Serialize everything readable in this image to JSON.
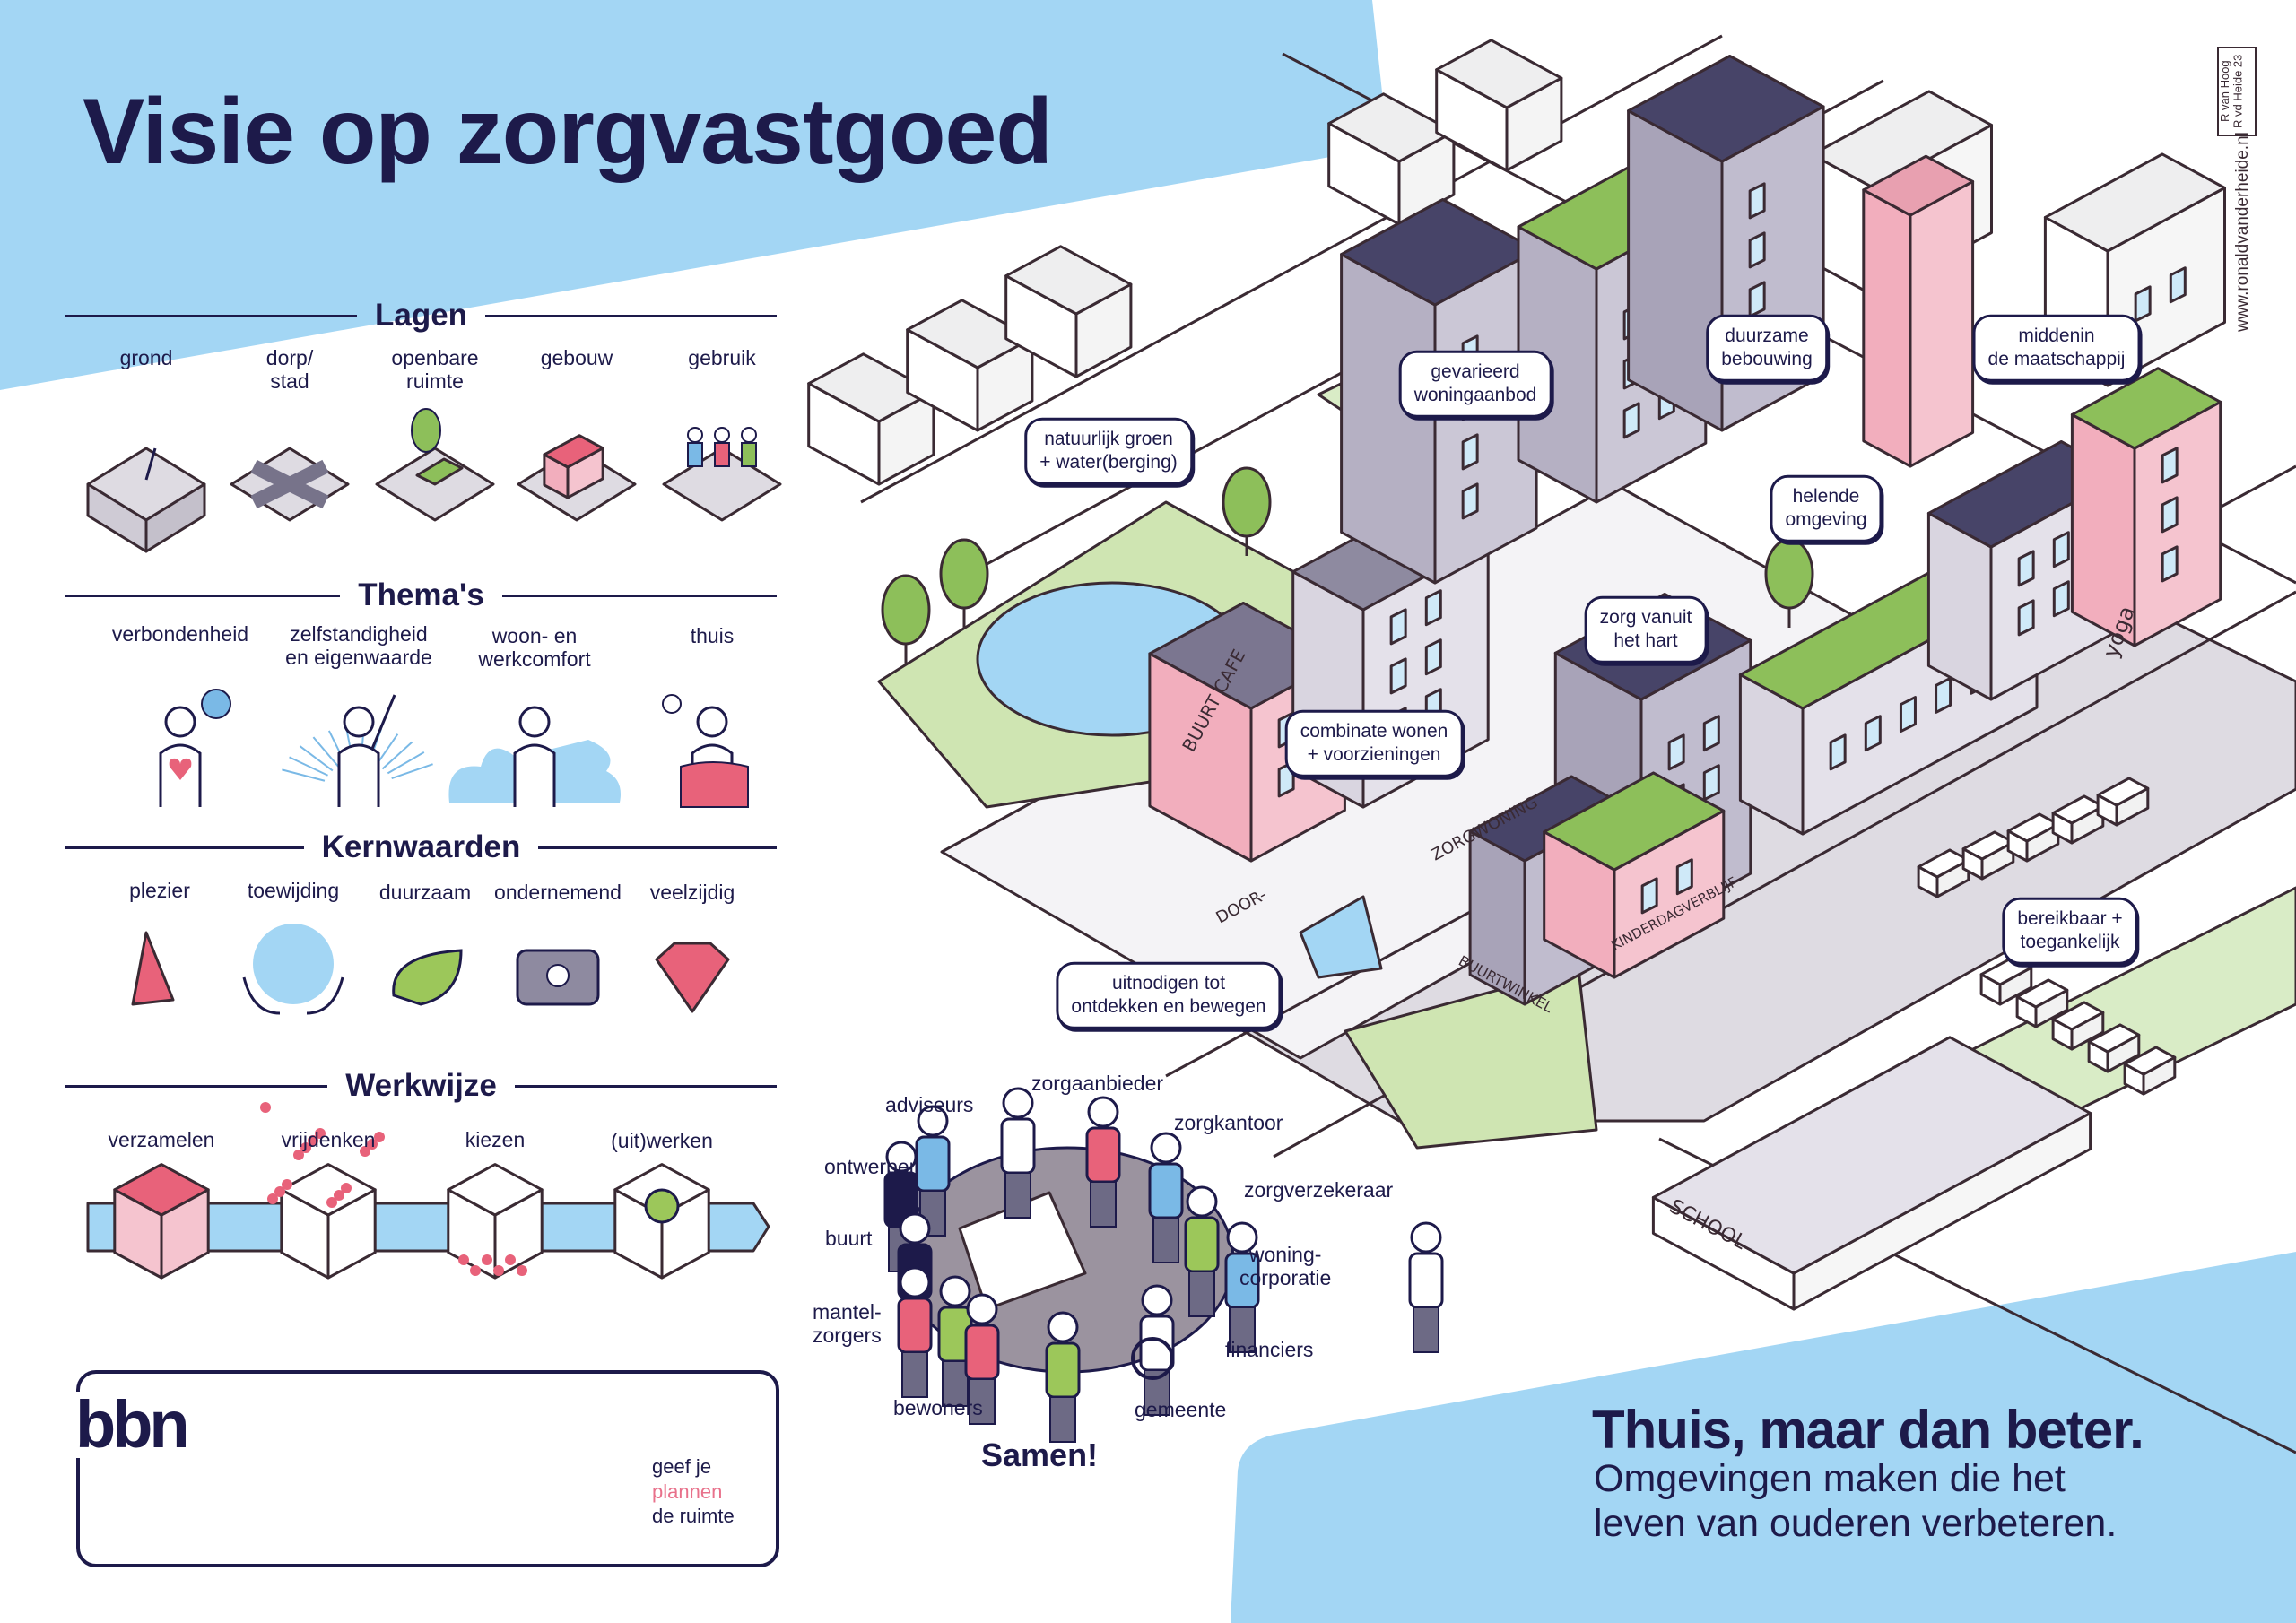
{
  "title": "Visie op zorgvastgoed",
  "lagen": {
    "heading": "Lagen",
    "items": [
      {
        "label": "grond",
        "icon": "soil-block-icon"
      },
      {
        "label": "dorp/\nstad",
        "icon": "crossroads-icon"
      },
      {
        "label": "openbare\nruimte",
        "icon": "park-bench-tree-icon"
      },
      {
        "label": "gebouw",
        "icon": "building-icon"
      },
      {
        "label": "gebruik",
        "icon": "people-high-five-icon"
      }
    ]
  },
  "themas": {
    "heading": "Thema's",
    "items": [
      {
        "label": "verbondenheid",
        "icon": "person-heart-globe-icon"
      },
      {
        "label": "zelfstandigheid\nen eigenwaarde",
        "icon": "proud-person-icon"
      },
      {
        "label": "woon- en\nwerkcomfort",
        "icon": "carer-cloud-icon"
      },
      {
        "label": "thuis",
        "icon": "person-armchair-reading-icon"
      }
    ]
  },
  "kernwaarden": {
    "heading": "Kernwaarden",
    "items": [
      {
        "label": "plezier",
        "icon": "party-hat-icon"
      },
      {
        "label": "toewijding",
        "icon": "hands-holding-sphere-icon"
      },
      {
        "label": "duurzaam",
        "icon": "leaf-icon"
      },
      {
        "label": "ondernemend",
        "icon": "briefcase-lightbulb-icon"
      },
      {
        "label": "veelzijdig",
        "icon": "diamond-icon"
      }
    ]
  },
  "werkwijze": {
    "heading": "Werkwijze",
    "steps": [
      {
        "label": "verzamelen",
        "icon": "full-box-icon"
      },
      {
        "label": "vrijdenken",
        "icon": "box-scattering-balls-icon"
      },
      {
        "label": "kiezen",
        "icon": "box-few-balls-icon"
      },
      {
        "label": "(uit)werken",
        "icon": "box-lightbulb-icon"
      }
    ]
  },
  "logo": {
    "text": "bbn",
    "tagline_1": "geef je",
    "tagline_2": "plannen",
    "tagline_3": "de ruimte"
  },
  "samen": {
    "title": "Samen!",
    "stakeholders": [
      "adviseurs",
      "zorgaanbieder",
      "zorgkantoor",
      "ontwerper",
      "zorgverzekeraar",
      "buurt",
      "woning-\ncorporatie",
      "mantel-\nzorgers",
      "financiers",
      "bewoners",
      "gemeente"
    ]
  },
  "callouts": [
    "natuurlijk groen\n+ water(berging)",
    "gevarieerd\nwoningaanbod",
    "duurzame\nbebouwing",
    "middenin\nde maatschappij",
    "helende\nomgeving",
    "zorg vanuit\nhet hart",
    "combinate wonen\n+ voorzieningen",
    "uitnodigen tot\nontdekken en bewegen",
    "bereikbaar +\ntoegankelijk"
  ],
  "signs": [
    "BUURT CAFE",
    "ZORGWONING",
    "DOOR-",
    "BUURTWINKEL",
    "KINDERDAGVERBLIJF",
    "yoga",
    "SCHOOL"
  ],
  "tagline": {
    "headline": "Thuis, maar dan beter.",
    "line_1": "Omgevingen maken die het",
    "line_2": "leven van ouderen verbeteren."
  },
  "credits": {
    "signature": "R van Hoog\nR vd Heide 23",
    "website": "www.ronaldvanderheide.nl"
  },
  "colors": {
    "navy": "#1d1a4a",
    "sky_blue": "#a3d6f4",
    "pink": "#e8627a",
    "green": "#9cc75a",
    "grey": "#8e8aa0",
    "pavement": "#dedbe2"
  }
}
